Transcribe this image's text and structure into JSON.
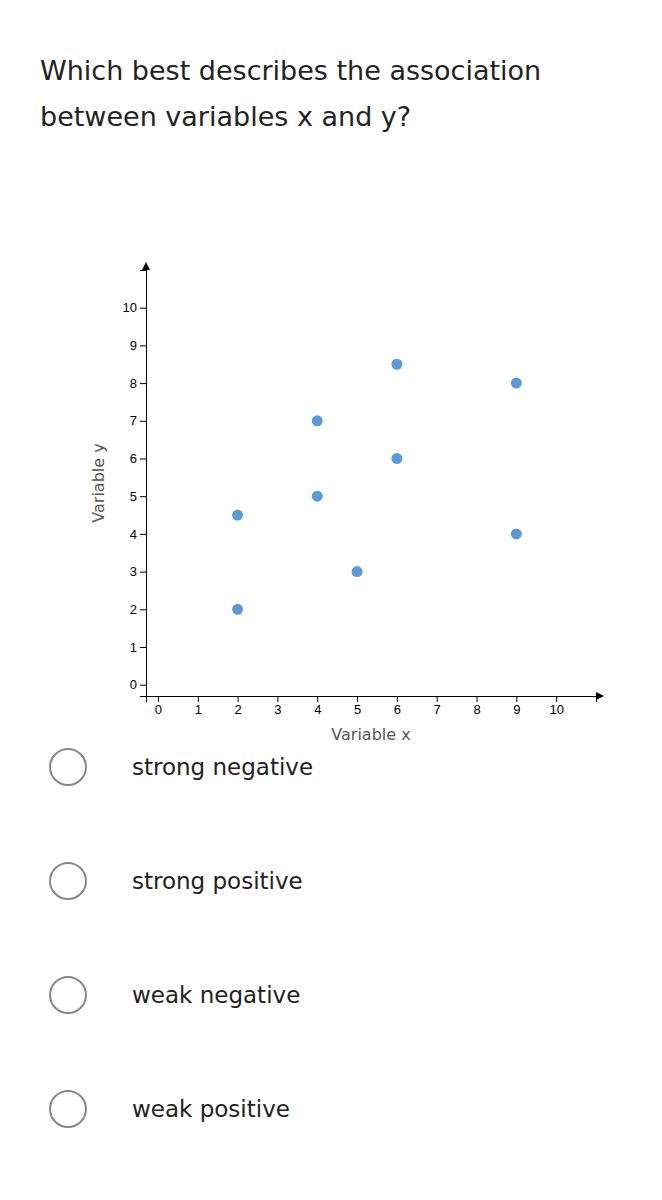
{
  "chart_data": {
    "type": "scatter",
    "title": "Which best describes the association between variables x and y?",
    "xlabel": "Variable x",
    "ylabel": "Variable y",
    "x": [
      2,
      2,
      4,
      4,
      5,
      6,
      6,
      9,
      9
    ],
    "values": [
      4.5,
      2,
      5,
      7,
      3,
      8.5,
      6,
      8,
      4
    ],
    "color": "#5b9bd5",
    "xlim": [
      -0.3,
      11
    ],
    "ylim": [
      -0.3,
      11
    ],
    "xticks": [
      0,
      1,
      2,
      3,
      4,
      5,
      6,
      7,
      8,
      9,
      10
    ],
    "yticks": [
      0,
      1,
      2,
      3,
      4,
      5,
      6,
      7,
      8,
      9,
      10
    ],
    "grid": false,
    "annotations": [
      "strong negative",
      "strong positive",
      "weak negative",
      "weak positive"
    ]
  }
}
